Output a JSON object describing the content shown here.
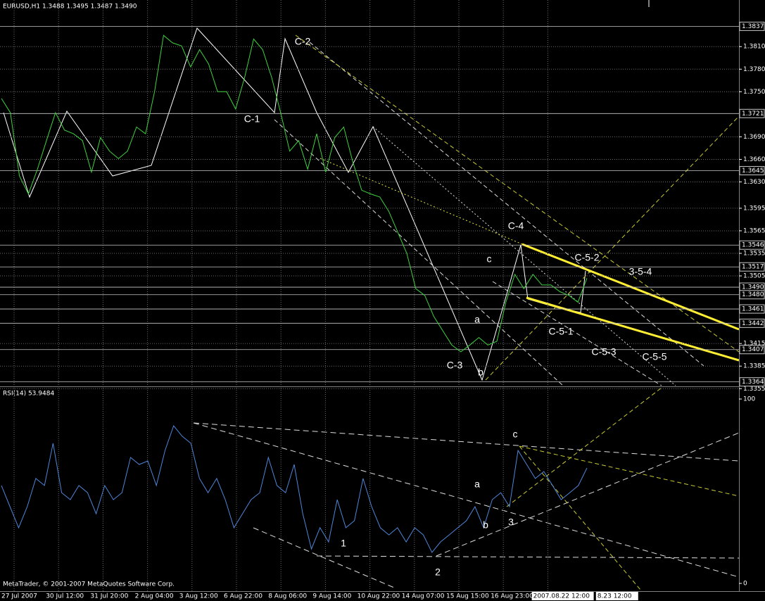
{
  "chart_data": [
    {
      "type": "line",
      "title": "EURUSD,H1  1.3488 1.3495 1.3487 1.3490",
      "color": "#3fd13f",
      "grid": true,
      "ylim": [
        1.3359,
        1.3872
      ],
      "yticks": [
        {
          "value": 1.381,
          "label": "1.3810"
        },
        {
          "value": 1.378,
          "label": "1.3780"
        },
        {
          "value": 1.375,
          "label": "1.3750"
        },
        {
          "value": 1.369,
          "label": "1.3690"
        },
        {
          "value": 1.366,
          "label": "1.3660"
        },
        {
          "value": 1.363,
          "label": "1.3630"
        },
        1.3595,
        1.3565,
        1.3535,
        1.3505,
        1.3415,
        1.3385,
        1.3355
      ],
      "levels": [
        1.3837,
        1.3721,
        1.3645,
        1.3546,
        1.3517,
        {
          "value": 1.349,
          "label": "1.3490"
        },
        {
          "value": 1.348,
          "label": "1.3480"
        },
        1.3461,
        1.3442,
        1.3407,
        1.3364
      ],
      "time_labels": [
        "27 Jul 2007",
        "30 Jul 12:00",
        "31 Jul 20:00",
        "2 Aug 04:00",
        "3 Aug 12:00",
        "6 Aug 22:00",
        "8 Aug 06:00",
        "9 Aug 14:00",
        "10 Aug 22:00",
        "14 Aug 07:00",
        "15 Aug 15:00",
        "16 Aug 23:00",
        "20 Aug 08:00",
        "2007.08.22 12:00",
        "8.23 12:00"
      ],
      "annotations": [
        "C-2",
        "C-1",
        "C-4",
        "c",
        "C-5-2",
        "3-5-4",
        "a",
        "C-5-1",
        "C-3",
        "b",
        "C-5-3",
        "C-5-5"
      ],
      "values": [
        1.3741,
        1.3722,
        1.3638,
        1.3614,
        1.3647,
        1.3685,
        1.3722,
        1.3699,
        1.3694,
        1.3685,
        1.3643,
        1.3689,
        1.3671,
        1.3661,
        1.3671,
        1.3703,
        1.3694,
        1.375,
        1.3825,
        1.3815,
        1.3811,
        1.3783,
        1.3806,
        1.3787,
        1.375,
        1.375,
        1.3727,
        1.3769,
        1.382,
        1.3806,
        1.3769,
        1.3722,
        1.3671,
        1.3685,
        1.3647,
        1.3694,
        1.3643,
        1.3689,
        1.3703,
        1.3657,
        1.3619,
        1.3614,
        1.361,
        1.3591,
        1.3563,
        1.3535,
        1.3488,
        1.3479,
        1.3451,
        1.3432,
        1.3413,
        1.3404,
        1.3413,
        1.3423,
        1.3413,
        1.3418,
        1.347,
        1.3507,
        1.3488,
        1.3507,
        1.3493,
        1.3493,
        1.3484,
        1.3479,
        1.347,
        1.3502
      ]
    },
    {
      "type": "line",
      "title": "RSI(14) 53.9484",
      "color": "#4f86d8",
      "ylim": [
        -4.2,
        106.1
      ],
      "yticks": [
        100,
        0
      ],
      "footer": "MetaTrader, © 2001-2007 MetaQuotes Software Corp.",
      "annotations": [
        "c",
        "a",
        "b",
        "3",
        "1",
        "2"
      ],
      "values": [
        53.1,
        41.6,
        30.2,
        41.6,
        56.9,
        53.1,
        76.0,
        49.2,
        45.4,
        53.1,
        49.2,
        37.8,
        53.1,
        45.4,
        49.2,
        68.3,
        64.5,
        66.4,
        53.1,
        72.1,
        85.5,
        79.8,
        76.0,
        56.9,
        49.2,
        56.9,
        45.4,
        30.2,
        37.8,
        45.4,
        49.2,
        68.3,
        53.1,
        49.2,
        64.5,
        37.8,
        18.7,
        30.2,
        22.5,
        45.4,
        30.2,
        34.0,
        56.9,
        41.6,
        30.2,
        26.3,
        30.2,
        22.5,
        30.2,
        26.3,
        16.8,
        22.5,
        26.3,
        30.2,
        34.0,
        41.6,
        30.2,
        45.4,
        49.2,
        41.6,
        72.1,
        64.5,
        56.9,
        60.7,
        53.1,
        45.4,
        49.2,
        53.1,
        62.6
      ]
    }
  ]
}
